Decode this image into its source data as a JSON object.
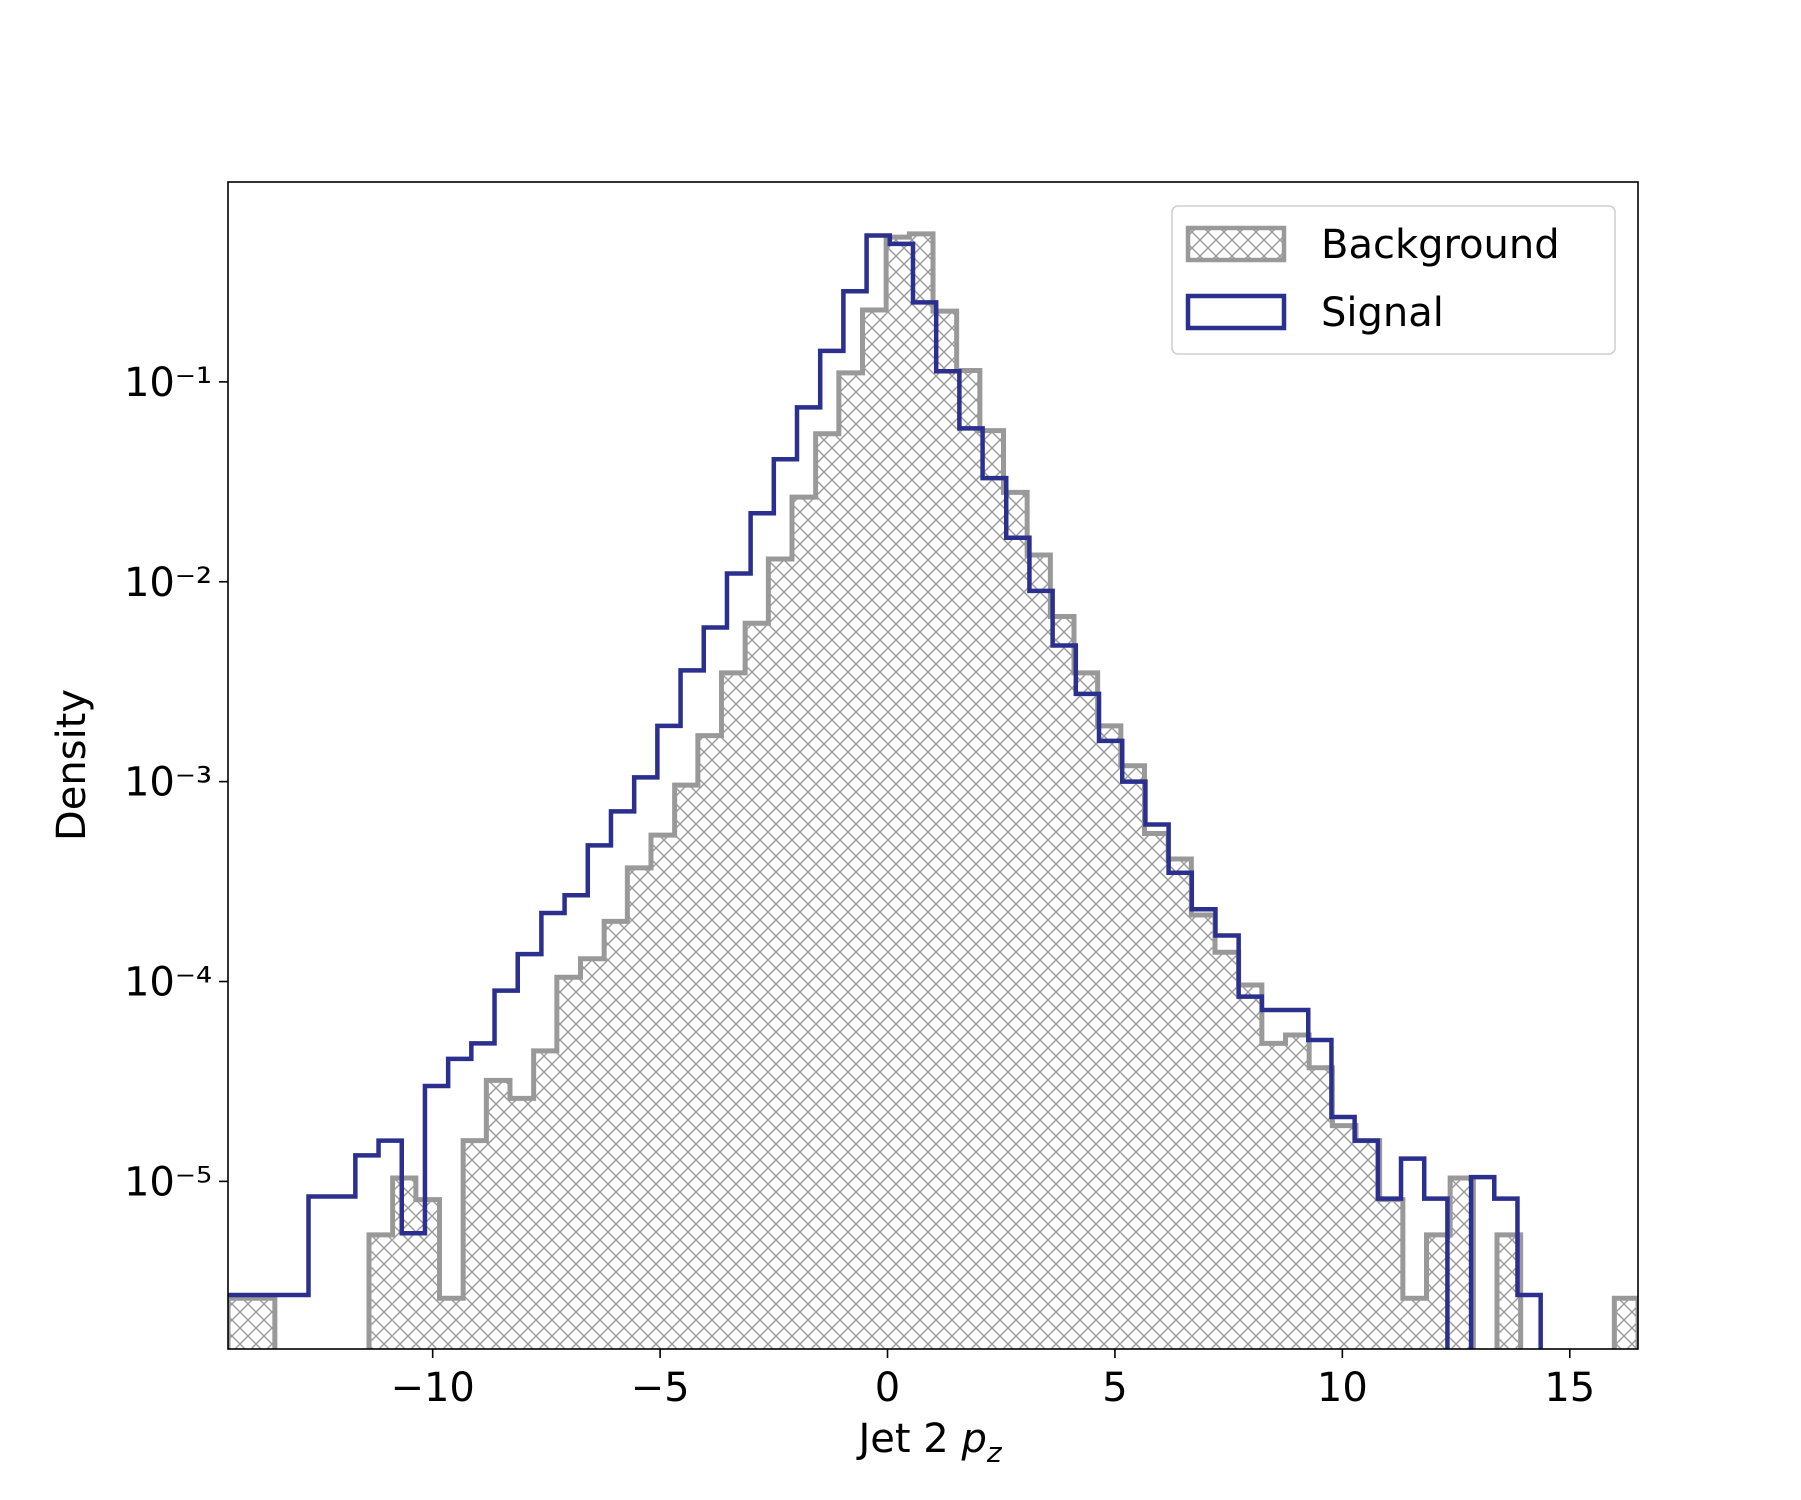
{
  "chart_data": {
    "type": "histogram",
    "xlabel": [
      "Jet 2 ",
      "p",
      "z"
    ],
    "ylabel": "Density",
    "xlim": [
      -14.5,
      16.5
    ],
    "ylim": [
      1.45e-06,
      1.0
    ],
    "log_y": true,
    "xticks": [
      {
        "value": -10,
        "label": "−10"
      },
      {
        "value": -5,
        "label": "−5"
      },
      0,
      5,
      10,
      15
    ],
    "yticks": [
      {
        "value": 1e-05,
        "label": "10⁻⁵"
      },
      {
        "value": 0.0001,
        "label": "10⁻⁴"
      },
      {
        "value": 0.001,
        "label": "10⁻³"
      },
      {
        "value": 0.01,
        "label": "10⁻²"
      },
      {
        "value": 0.1,
        "label": "10⁻¹"
      }
    ],
    "grid": false,
    "legend": "upper right",
    "series": [
      {
        "name": "Background",
        "color": "#999999",
        "hatch": "xx",
        "bins": [
          -14.5,
          -13.98,
          -13.47,
          -12.95,
          -12.43,
          -11.92,
          -11.4,
          -10.88,
          -10.37,
          -9.85,
          -9.33,
          -8.82,
          -8.3,
          -7.78,
          -7.27,
          -6.75,
          -6.23,
          -5.72,
          -5.2,
          -4.68,
          -4.17,
          -3.65,
          -3.13,
          -2.62,
          -2.1,
          -1.58,
          -1.07,
          -0.55,
          -0.03,
          0.48,
          1.0,
          1.52,
          2.03,
          2.55,
          3.07,
          3.58,
          4.1,
          4.62,
          5.13,
          5.65,
          6.17,
          6.68,
          7.2,
          7.72,
          8.23,
          8.75,
          9.27,
          9.78,
          10.3,
          10.82,
          11.33,
          11.85,
          12.37,
          12.88,
          13.4,
          13.92,
          14.43,
          14.95,
          15.47,
          15.98,
          16.5
        ],
        "values": [
          2.6e-06,
          2.6e-06,
          0,
          0,
          0,
          0,
          5.4e-06,
          1.04e-05,
          8.1e-06,
          2.6e-06,
          1.6e-05,
          3.2e-05,
          2.6e-05,
          4.5e-05,
          0.000105,
          0.00013,
          0.0002,
          0.00037,
          0.00054,
          0.00096,
          0.0017,
          0.0035,
          0.0062,
          0.013,
          0.0265,
          0.055,
          0.111,
          0.229,
          0.53,
          0.55,
          0.226,
          0.114,
          0.057,
          0.028,
          0.0136,
          0.0067,
          0.0035,
          0.0019,
          0.0012,
          0.00055,
          0.00041,
          0.000215,
          0.00014,
          9.6e-05,
          4.9e-05,
          5.4e-05,
          3.7e-05,
          1.9e-05,
          1.6e-05,
          8.1e-06,
          2.6e-06,
          5.4e-06,
          1.04e-05,
          0,
          5.4e-06,
          0,
          0,
          0,
          0,
          2.6e-06
        ]
      },
      {
        "name": "Signal",
        "color": "#2b2f8e",
        "bins": [
          -14.77,
          -14.26,
          -13.75,
          -13.24,
          -12.73,
          -12.21,
          -11.7,
          -11.19,
          -10.68,
          -10.17,
          -9.66,
          -9.15,
          -8.64,
          -8.13,
          -7.61,
          -7.1,
          -6.59,
          -6.08,
          -5.57,
          -5.06,
          -4.55,
          -4.04,
          -3.53,
          -3.01,
          -2.5,
          -1.99,
          -1.48,
          -0.97,
          -0.46,
          0.05,
          0.56,
          1.07,
          1.58,
          2.09,
          2.61,
          3.12,
          3.63,
          4.14,
          4.65,
          5.16,
          5.67,
          6.18,
          6.69,
          7.21,
          7.72,
          8.23,
          8.74,
          9.25,
          9.76,
          10.27,
          10.78,
          11.29,
          11.8,
          12.31,
          12.83,
          13.34,
          13.85,
          14.36
        ],
        "values": [
          2.7e-06,
          2.7e-06,
          2.7e-06,
          2.7e-06,
          8.4e-06,
          8.4e-06,
          1.35e-05,
          1.6e-05,
          5.5e-06,
          3e-05,
          4.1e-05,
          4.9e-05,
          9e-05,
          0.000137,
          0.00022,
          0.00027,
          0.00048,
          0.00071,
          0.00105,
          0.0019,
          0.0036,
          0.0059,
          0.011,
          0.022,
          0.041,
          0.0745,
          0.143,
          0.284,
          0.54,
          0.49,
          0.25,
          0.113,
          0.0585,
          0.033,
          0.0166,
          0.009,
          0.0048,
          0.00275,
          0.0016,
          0.001,
          0.00061,
          0.00035,
          0.00023,
          0.00017,
          8.4e-05,
          7.2e-05,
          7.2e-05,
          5.1e-05,
          2.1e-05,
          1.6e-05,
          8.2e-06,
          1.3e-05,
          8.2e-06,
          0,
          1.05e-05,
          8.2e-06,
          2.7e-06
        ]
      }
    ]
  }
}
